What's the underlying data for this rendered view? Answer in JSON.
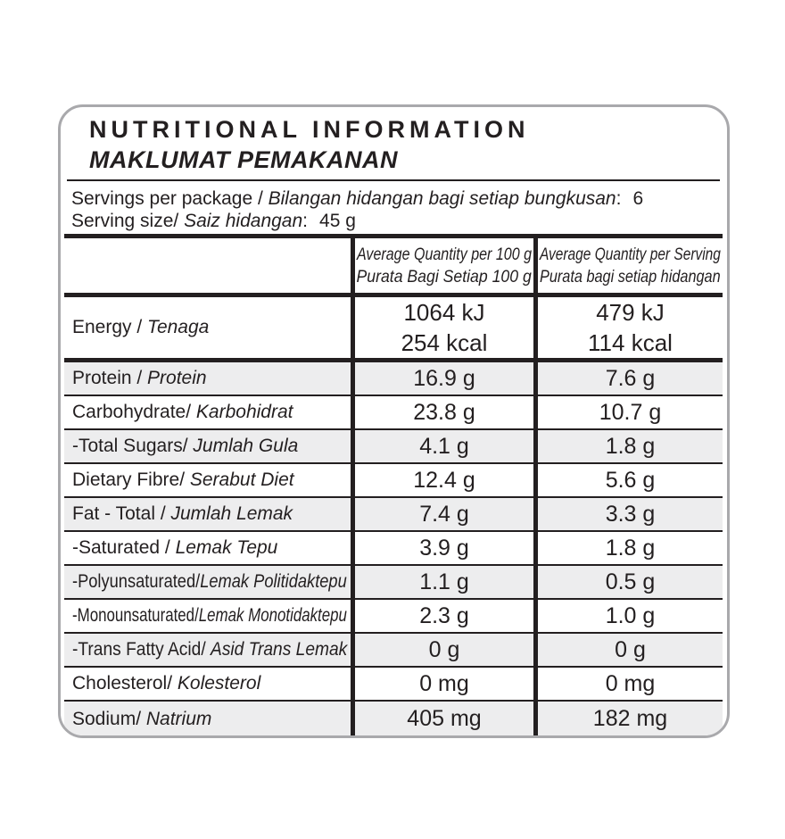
{
  "label": {
    "title_en": "NUTRITIONAL INFORMATION",
    "title_ms": "MAKLUMAT PEMAKANAN",
    "servings": {
      "en": "Servings per package / ",
      "ms": "Bilangan hidangan bagi setiap bungkusan",
      "sep": ":",
      "value": "6"
    },
    "serving_size": {
      "en": "Serving size/ ",
      "ms": "Saiz hidangan",
      "sep": ":",
      "value": "45 g"
    },
    "col_per100": {
      "line1": "Average Quantity per 100 g",
      "line2": "Purata Bagi Setiap 100 g"
    },
    "col_per_serving": {
      "line1": "Average Quantity per Serving",
      "line2": "Purata bagi setiap hidangan"
    },
    "energy": {
      "en": "Energy / ",
      "ms": "Tenaga",
      "per100": [
        "1064 kJ",
        "254 kcal"
      ],
      "per_serving": [
        "479 kJ",
        "114 kcal"
      ]
    },
    "rows": [
      {
        "en": "Protein / ",
        "ms": "Protein",
        "per100": "16.9 g",
        "per_serving": "7.6 g"
      },
      {
        "en": "Carbohydrate/ ",
        "ms": "Karbohidrat",
        "per100": "23.8 g",
        "per_serving": "10.7 g"
      },
      {
        "en": "-Total Sugars/ ",
        "ms": "Jumlah Gula",
        "per100": "4.1 g",
        "per_serving": "1.8 g"
      },
      {
        "en": "Dietary Fibre/ ",
        "ms": "Serabut Diet",
        "per100": "12.4 g",
        "per_serving": "5.6 g"
      },
      {
        "en": "Fat - Total / ",
        "ms": "Jumlah Lemak",
        "per100": "7.4 g",
        "per_serving": "3.3 g"
      },
      {
        "en": "-Saturated / ",
        "ms": "Lemak Tepu",
        "per100": "3.9 g",
        "per_serving": "1.8 g"
      },
      {
        "en": "-Polyunsaturated/",
        "ms": "Lemak Politidaktepu",
        "per100": "1.1 g",
        "per_serving": "0.5 g"
      },
      {
        "en": "-Monounsaturated/",
        "ms": "Lemak Monotidaktepu",
        "per100": "2.3 g",
        "per_serving": "1.0 g"
      },
      {
        "en": "-Trans Fatty Acid/ ",
        "ms": "Asid Trans Lemak",
        "per100": "0 g",
        "per_serving": "0 g"
      },
      {
        "en": "Cholesterol/ ",
        "ms": "Kolesterol",
        "per100": "0 mg",
        "per_serving": "0 mg"
      },
      {
        "en": "Sodium/ ",
        "ms": "Natrium",
        "per100": "405 mg",
        "per_serving": "182 mg"
      }
    ],
    "colors": {
      "text": "#231f20",
      "rule": "#231f20",
      "shade": "#ededee",
      "outer_border": "#a9a9ac"
    }
  }
}
